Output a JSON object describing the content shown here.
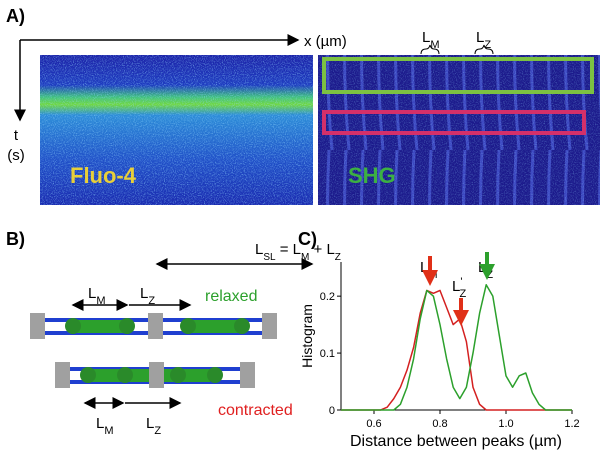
{
  "panel_a": {
    "label": "A)",
    "x_axis": "x (µm)",
    "t_axis": [
      "t",
      "(s)"
    ],
    "fluo_label": "Fluo-4",
    "shg_label": "SHG",
    "lm": {
      "main": "L",
      "sub": "M"
    },
    "lz": {
      "main": "L",
      "sub": "Z"
    }
  },
  "panel_b": {
    "label": "B)",
    "equation": [
      {
        "text": "L",
        "sub": false
      },
      {
        "text": "SL",
        "sub": true
      },
      {
        "text": " = L",
        "sub": false
      },
      {
        "text": "M",
        "sub": true
      },
      {
        "text": " + L",
        "sub": false
      },
      {
        "text": "Z",
        "sub": true
      }
    ],
    "relaxed": "relaxed",
    "contracted": "contracted",
    "relaxed_lm": {
      "main": "L",
      "sub": "M"
    },
    "relaxed_lz": {
      "main": "L",
      "sub": "Z"
    },
    "contracted_lm": {
      "main": "L",
      "sub": "M"
    },
    "contracted_lz": {
      "main": "L",
      "sub": "Z"
    }
  },
  "chart_data": {
    "type": "line",
    "panel_label": "C)",
    "xlabel": "Distance between peaks (µm)",
    "ylabel": "Histogram",
    "x": [
      0.5,
      0.52,
      0.54,
      0.56,
      0.58,
      0.6,
      0.62,
      0.64,
      0.66,
      0.68,
      0.7,
      0.72,
      0.74,
      0.76,
      0.78,
      0.8,
      0.82,
      0.84,
      0.86,
      0.88,
      0.9,
      0.92,
      0.94,
      0.96,
      0.98,
      1.0,
      1.02,
      1.04,
      1.06,
      1.08,
      1.1,
      1.12,
      1.14,
      1.16,
      1.18,
      1.2
    ],
    "series": [
      {
        "color": "#d42020",
        "values": [
          0,
          0,
          0,
          0,
          0,
          0,
          0,
          0.005,
          0.02,
          0.04,
          0.07,
          0.11,
          0.17,
          0.21,
          0.205,
          0.21,
          0.18,
          0.15,
          0.16,
          0.12,
          0.04,
          0.01,
          0,
          0,
          0,
          0,
          0,
          0,
          0,
          0,
          0,
          0,
          0,
          0,
          0,
          0
        ]
      },
      {
        "color": "#2ca02c",
        "values": [
          0,
          0,
          0,
          0,
          0,
          0,
          0,
          0,
          0,
          0.01,
          0.04,
          0.09,
          0.16,
          0.21,
          0.2,
          0.15,
          0.09,
          0.04,
          0.02,
          0.04,
          0.1,
          0.17,
          0.22,
          0.2,
          0.13,
          0.06,
          0.04,
          0.06,
          0.065,
          0.03,
          0.01,
          0,
          0,
          0,
          0,
          0
        ]
      }
    ],
    "xlim": [
      0.5,
      1.2
    ],
    "ylim": [
      0,
      0.26
    ],
    "xticks": [
      0.6,
      0.8,
      {
        "value": 1,
        "label": "1.0"
      },
      1.2
    ],
    "yticks": [
      0,
      0.1,
      0.2
    ],
    "annotations": [
      {
        "main": "L",
        "sub": "M"
      },
      {
        "main": "L",
        "sub": "Z"
      },
      {
        "main": "L",
        "sup": "'",
        "sub": "Z"
      }
    ]
  }
}
